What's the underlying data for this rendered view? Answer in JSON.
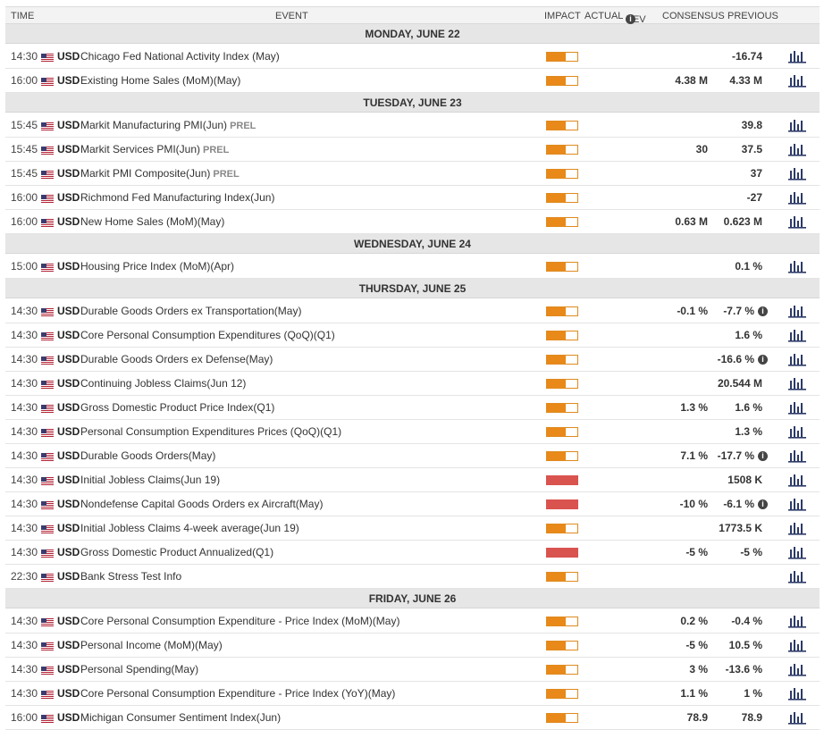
{
  "header": {
    "time": "TIME",
    "event": "EVENT",
    "impact": "IMPACT",
    "actual": "ACTUAL",
    "dev": "DEV",
    "consensus": "CONSENSUS",
    "previous": "PREVIOUS"
  },
  "colors": {
    "medium": "#e8891a",
    "high": "#d9534f",
    "day_bg": "#e6e6e6",
    "chart_icon": "#2b3a67"
  },
  "days": [
    {
      "label": "MONDAY, JUNE 22",
      "events": [
        {
          "time": "14:30",
          "currency": "USD",
          "name": "Chicago Fed National Activity Index (May)",
          "prel": "",
          "impact": "medium",
          "consensus": "",
          "previous": "-16.74",
          "info": false
        },
        {
          "time": "16:00",
          "currency": "USD",
          "name": "Existing Home Sales (MoM)(May)",
          "prel": "",
          "impact": "medium",
          "consensus": "4.38 M",
          "previous": "4.33 M",
          "info": false
        }
      ]
    },
    {
      "label": "TUESDAY, JUNE 23",
      "events": [
        {
          "time": "15:45",
          "currency": "USD",
          "name": "Markit Manufacturing PMI(Jun)",
          "prel": "PREL",
          "impact": "medium",
          "consensus": "",
          "previous": "39.8",
          "info": false
        },
        {
          "time": "15:45",
          "currency": "USD",
          "name": "Markit Services PMI(Jun)",
          "prel": "PREL",
          "impact": "medium",
          "consensus": "30",
          "previous": "37.5",
          "info": false
        },
        {
          "time": "15:45",
          "currency": "USD",
          "name": "Markit PMI Composite(Jun)",
          "prel": "PREL",
          "impact": "medium",
          "consensus": "",
          "previous": "37",
          "info": false
        },
        {
          "time": "16:00",
          "currency": "USD",
          "name": "Richmond Fed Manufacturing Index(Jun)",
          "prel": "",
          "impact": "medium",
          "consensus": "",
          "previous": "-27",
          "info": false
        },
        {
          "time": "16:00",
          "currency": "USD",
          "name": "New Home Sales (MoM)(May)",
          "prel": "",
          "impact": "medium",
          "consensus": "0.63 M",
          "previous": "0.623 M",
          "info": false
        }
      ]
    },
    {
      "label": "WEDNESDAY, JUNE 24",
      "events": [
        {
          "time": "15:00",
          "currency": "USD",
          "name": "Housing Price Index (MoM)(Apr)",
          "prel": "",
          "impact": "medium",
          "consensus": "",
          "previous": "0.1 %",
          "info": false
        }
      ]
    },
    {
      "label": "THURSDAY, JUNE 25",
      "events": [
        {
          "time": "14:30",
          "currency": "USD",
          "name": "Durable Goods Orders ex Transportation(May)",
          "prel": "",
          "impact": "medium",
          "consensus": "-0.1 %",
          "previous": "-7.7 %",
          "info": true
        },
        {
          "time": "14:30",
          "currency": "USD",
          "name": "Core Personal Consumption Expenditures (QoQ)(Q1)",
          "prel": "",
          "impact": "medium",
          "consensus": "",
          "previous": "1.6 %",
          "info": false
        },
        {
          "time": "14:30",
          "currency": "USD",
          "name": "Durable Goods Orders ex Defense(May)",
          "prel": "",
          "impact": "medium",
          "consensus": "",
          "previous": "-16.6 %",
          "info": true
        },
        {
          "time": "14:30",
          "currency": "USD",
          "name": "Continuing Jobless Claims(Jun 12)",
          "prel": "",
          "impact": "medium",
          "consensus": "",
          "previous": "20.544 M",
          "info": false
        },
        {
          "time": "14:30",
          "currency": "USD",
          "name": "Gross Domestic Product Price Index(Q1)",
          "prel": "",
          "impact": "medium",
          "consensus": "1.3 %",
          "previous": "1.6 %",
          "info": false
        },
        {
          "time": "14:30",
          "currency": "USD",
          "name": "Personal Consumption Expenditures Prices (QoQ)(Q1)",
          "prel": "",
          "impact": "medium",
          "consensus": "",
          "previous": "1.3 %",
          "info": false
        },
        {
          "time": "14:30",
          "currency": "USD",
          "name": "Durable Goods Orders(May)",
          "prel": "",
          "impact": "medium",
          "consensus": "7.1 %",
          "previous": "-17.7 %",
          "info": true
        },
        {
          "time": "14:30",
          "currency": "USD",
          "name": "Initial Jobless Claims(Jun 19)",
          "prel": "",
          "impact": "high",
          "consensus": "",
          "previous": "1508 K",
          "info": false
        },
        {
          "time": "14:30",
          "currency": "USD",
          "name": "Nondefense Capital Goods Orders ex Aircraft(May)",
          "prel": "",
          "impact": "high",
          "consensus": "-10 %",
          "previous": "-6.1 %",
          "info": true
        },
        {
          "time": "14:30",
          "currency": "USD",
          "name": "Initial Jobless Claims 4-week average(Jun 19)",
          "prel": "",
          "impact": "medium",
          "consensus": "",
          "previous": "1773.5 K",
          "info": false
        },
        {
          "time": "14:30",
          "currency": "USD",
          "name": "Gross Domestic Product Annualized(Q1)",
          "prel": "",
          "impact": "high",
          "consensus": "-5 %",
          "previous": "-5 %",
          "info": false
        },
        {
          "time": "22:30",
          "currency": "USD",
          "name": "Bank Stress Test Info",
          "prel": "",
          "impact": "medium",
          "consensus": "",
          "previous": "",
          "info": false
        }
      ]
    },
    {
      "label": "FRIDAY, JUNE 26",
      "events": [
        {
          "time": "14:30",
          "currency": "USD",
          "name": "Core Personal Consumption Expenditure - Price Index (MoM)(May)",
          "prel": "",
          "impact": "medium",
          "consensus": "0.2 %",
          "previous": "-0.4 %",
          "info": false
        },
        {
          "time": "14:30",
          "currency": "USD",
          "name": "Personal Income (MoM)(May)",
          "prel": "",
          "impact": "medium",
          "consensus": "-5 %",
          "previous": "10.5 %",
          "info": false
        },
        {
          "time": "14:30",
          "currency": "USD",
          "name": "Personal Spending(May)",
          "prel": "",
          "impact": "medium",
          "consensus": "3 %",
          "previous": "-13.6 %",
          "info": false
        },
        {
          "time": "14:30",
          "currency": "USD",
          "name": "Core Personal Consumption Expenditure - Price Index (YoY)(May)",
          "prel": "",
          "impact": "medium",
          "consensus": "1.1 %",
          "previous": "1 %",
          "info": false
        },
        {
          "time": "16:00",
          "currency": "USD",
          "name": "Michigan Consumer Sentiment Index(Jun)",
          "prel": "",
          "impact": "medium",
          "consensus": "78.9",
          "previous": "78.9",
          "info": false
        }
      ]
    }
  ]
}
